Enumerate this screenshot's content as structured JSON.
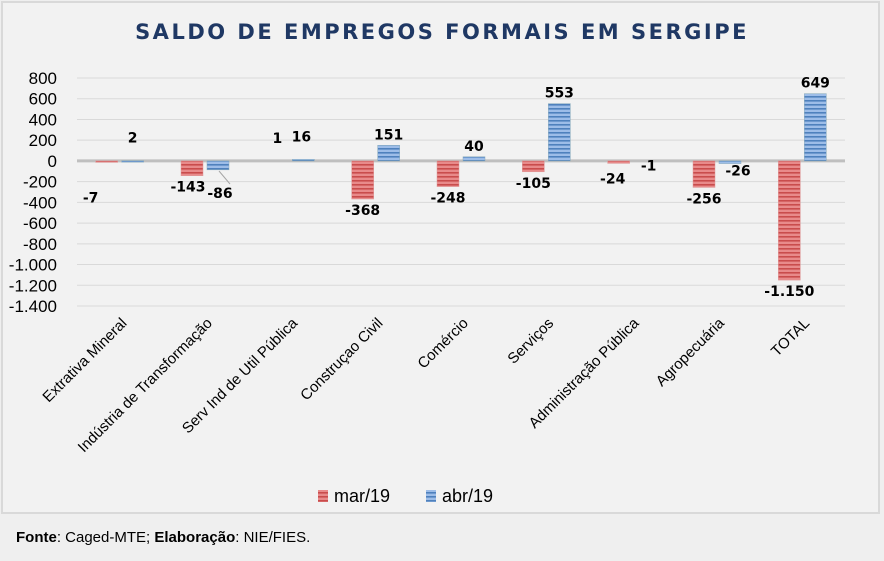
{
  "chart_data": {
    "type": "bar",
    "title": "SALDO DE EMPREGOS FORMAIS EM SERGIPE",
    "xlabel": "",
    "ylabel": "",
    "ylim": [
      -1400,
      800
    ],
    "yticks": [
      800,
      600,
      400,
      200,
      0,
      -200,
      -400,
      -600,
      -800,
      -1000,
      -1200,
      -1400
    ],
    "ytick_labels": [
      "800",
      "600",
      "400",
      "200",
      "0",
      "-200",
      "-400",
      "-600",
      "-800",
      "-1.000",
      "-1.200",
      "-1.400"
    ],
    "grid": true,
    "legend_position": "bottom",
    "categories": [
      "Extrativa Mineral",
      "Indústria de Transformação",
      "Serv Ind de Util Pública",
      "Construçao Civil",
      "Comércio",
      "Serviços",
      "Administração Pública",
      "Agropecuária",
      "TOTAL"
    ],
    "series": [
      {
        "name": "mar/19",
        "color": "#e06666",
        "values": [
          -7,
          -143,
          1,
          -368,
          -248,
          -105,
          -24,
          -256,
          -1150
        ],
        "labels": [
          "-7",
          "-143",
          "1",
          "-368",
          "-248",
          "-105",
          "-24",
          "-256",
          "-1.150"
        ]
      },
      {
        "name": "abr/19",
        "color": "#6d9eeb",
        "values": [
          2,
          -86,
          16,
          151,
          40,
          553,
          -1,
          -26,
          649
        ],
        "labels": [
          "2",
          "-86",
          "16",
          "151",
          "40",
          "553",
          "-1",
          "-26",
          "649"
        ]
      }
    ]
  },
  "footer": {
    "source_label": "Fonte",
    "source_value": ": Caged-MTE; ",
    "elab_label": "Elaboração",
    "elab_value": ": NIE/FIES."
  }
}
